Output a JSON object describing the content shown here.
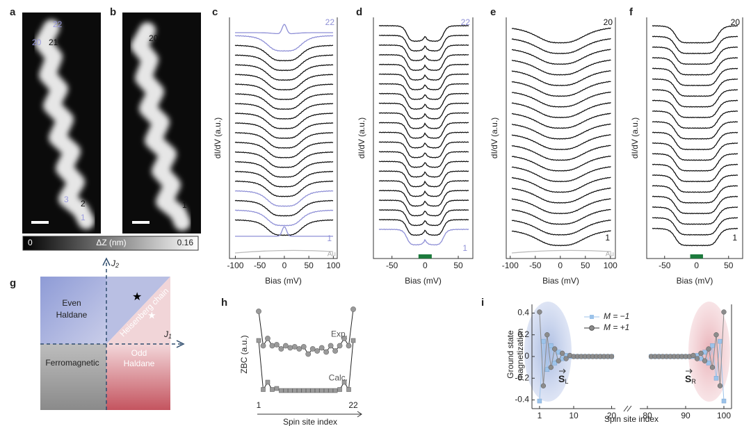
{
  "panel_labels": [
    "a",
    "b",
    "c",
    "d",
    "e",
    "f",
    "g",
    "h",
    "i"
  ],
  "a": {
    "site_labels": [
      "22",
      "20",
      "21",
      "3",
      "2",
      "1"
    ]
  },
  "b": {
    "site_labels": [
      "20",
      "1"
    ]
  },
  "colorbar": {
    "min": "0",
    "title": "ΔZ (nm)",
    "max": "0.16"
  },
  "spectra": [
    {
      "y_label": "dI/dV (a.u.)",
      "x_label": "Bias (mV)",
      "xlim": [
        -112,
        108
      ],
      "xticks": [
        -100,
        -50,
        0,
        50,
        100
      ],
      "top_label": "22",
      "bottom_label": "1",
      "reference_label": "Au"
    },
    {
      "y_label": "dI/dV (a.u.)",
      "x_label": "Bias (mV)",
      "xlim": [
        -78,
        72
      ],
      "xticks": [
        -50,
        0,
        50
      ],
      "top_label": "22",
      "bottom_label": "1"
    },
    {
      "y_label": "dI/dV (a.u.)",
      "x_label": "Bias (mV)",
      "xlim": [
        -108,
        110
      ],
      "xticks": [
        -100,
        -50,
        0,
        50,
        100
      ],
      "top_label": "20",
      "bottom_label": "1",
      "reference_label": "Au"
    },
    {
      "y_label": "dI/dV (a.u.)",
      "x_label": "Bias (mV)",
      "xlim": [
        -78,
        72
      ],
      "xticks": [
        -50,
        0,
        50
      ],
      "top_label": "20",
      "bottom_label": "1"
    }
  ],
  "g": {
    "y_axis": {
      "symbol": "J",
      "subscript": "2"
    },
    "x_axis": {
      "symbol": "J",
      "subscript": "1"
    },
    "regions": [
      "Even",
      "Haldane",
      "Heisenberg chain",
      "Ferromagnetic",
      "Odd",
      "Haldane"
    ]
  },
  "h": {
    "y_label": "ZBC (a.u.)",
    "x_label": "Spin site index",
    "first_site": "1",
    "last_site": "22",
    "ylim": [
      0,
      1
    ],
    "series": [
      {
        "name": "Exp.",
        "values": [
          0.88,
          0.55,
          0.62,
          0.55,
          0.56,
          0.52,
          0.55,
          0.53,
          0.54,
          0.52,
          0.54,
          0.47,
          0.52,
          0.5,
          0.53,
          0.49,
          0.55,
          0.5,
          0.55,
          0.62,
          0.55,
          0.9
        ]
      },
      {
        "name": "Calc.",
        "values": [
          0.6,
          0.13,
          0.2,
          0.13,
          0.14,
          0.12,
          0.12,
          0.12,
          0.12,
          0.12,
          0.12,
          0.12,
          0.12,
          0.12,
          0.12,
          0.12,
          0.12,
          0.12,
          0.13,
          0.2,
          0.13,
          0.6
        ]
      }
    ]
  },
  "i": {
    "y_label": "Ground state",
    "y_label_2": "magnetization",
    "x_label": "Spin site index",
    "ylim": [
      -0.48,
      0.48
    ],
    "yticks": [
      -0.4,
      -0.2,
      0,
      0.2,
      0.4
    ],
    "xticks": [
      1,
      10,
      20,
      80,
      90,
      100
    ],
    "x_segments": [
      [
        -1,
        21
      ],
      [
        78,
        102
      ]
    ],
    "x": [
      1,
      2,
      3,
      4,
      5,
      6,
      7,
      8,
      9,
      10,
      11,
      12,
      13,
      14,
      15,
      16,
      17,
      18,
      19,
      20,
      81,
      82,
      83,
      84,
      85,
      86,
      87,
      88,
      89,
      90,
      91,
      92,
      93,
      94,
      95,
      96,
      97,
      98,
      99,
      100
    ],
    "series": [
      {
        "name": "M = −1",
        "color": "#9cc3ea",
        "values": [
          -0.41,
          0.14,
          -0.12,
          0.1,
          -0.06,
          0.04,
          -0.02,
          0.01,
          0,
          0,
          0,
          0,
          0,
          0,
          0,
          0,
          0,
          0,
          0,
          0,
          0,
          0,
          0,
          0,
          0,
          0,
          0,
          0,
          0,
          0,
          0,
          0,
          0.01,
          -0.02,
          0.04,
          -0.06,
          0.1,
          -0.2,
          0.14,
          -0.41
        ]
      },
      {
        "name": "M = +1",
        "color": "#8c8c8c",
        "values": [
          0.41,
          -0.27,
          0.2,
          -0.1,
          0.07,
          -0.04,
          0.03,
          -0.02,
          0.01,
          0,
          0,
          0,
          0,
          0,
          0,
          0,
          0,
          0,
          0,
          0,
          0,
          0,
          0,
          0,
          0,
          0,
          0,
          0,
          0,
          0,
          0,
          0.01,
          -0.02,
          0.03,
          -0.04,
          0.07,
          -0.1,
          0.2,
          -0.27,
          0.41
        ]
      }
    ],
    "vectors": [
      {
        "symbol": "S",
        "subscript": "L"
      },
      {
        "symbol": "S",
        "subscript": "R"
      }
    ]
  }
}
